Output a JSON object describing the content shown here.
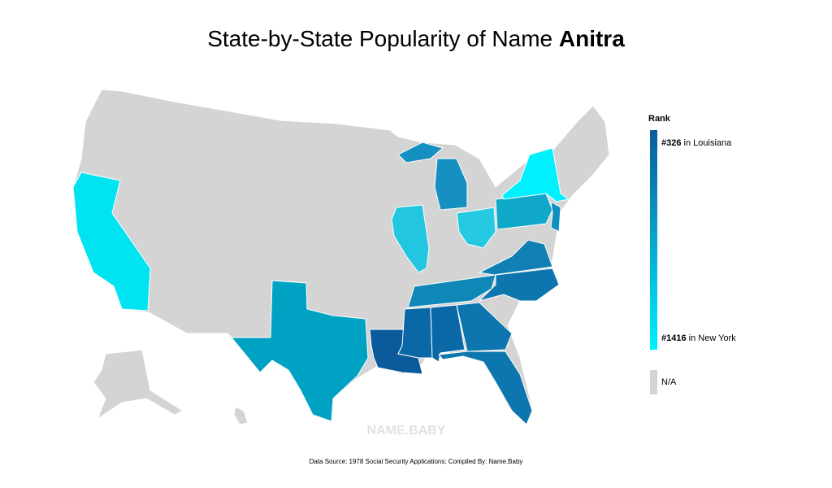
{
  "header": {
    "title_prefix": "State-by-State Popularity of Name",
    "title_name": "Anitra"
  },
  "legend": {
    "title": "Rank",
    "high": {
      "rank": "#326",
      "text": "in Louisiana",
      "color": "#0a5a9c"
    },
    "low": {
      "rank": "#1416",
      "text": "in New York",
      "color": "#00f0ff"
    },
    "na": {
      "text": "N/A",
      "color": "#d4d4d4"
    }
  },
  "watermark": "NAME.BABY",
  "footer": {
    "source": "Data Source: 1978 Social Security Applications; Compiled By: Name.Baby"
  }
}
